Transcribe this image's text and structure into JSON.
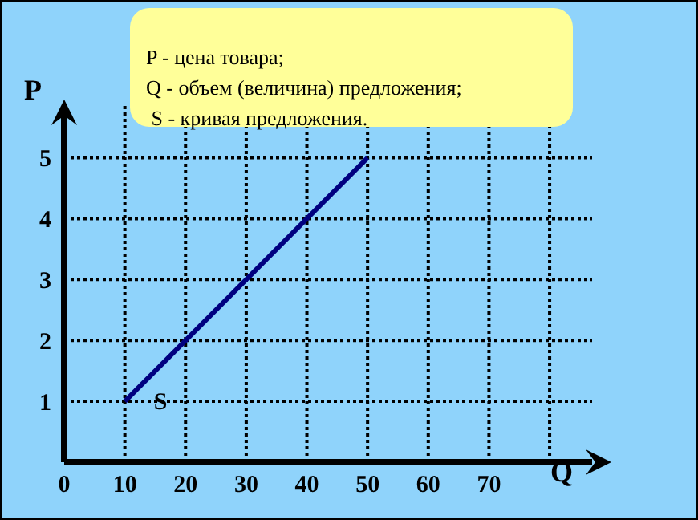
{
  "chart_data": {
    "type": "line",
    "xlabel": "Q",
    "ylabel": "P",
    "x": [
      10,
      50
    ],
    "series": [
      {
        "name": "S",
        "color": "#000080",
        "values": [
          1,
          5
        ]
      }
    ],
    "xlim": [
      0,
      87
    ],
    "ylim": [
      0,
      5.85
    ],
    "xticks": [
      {
        "value": 0,
        "label": "0"
      },
      10,
      20,
      30,
      40,
      50,
      60,
      70,
      {
        "value": 80,
        "label": null
      }
    ],
    "yticks": [
      1,
      2,
      3,
      4,
      5
    ],
    "grid": true,
    "marker": "none",
    "line_style": "solid",
    "annotations": [
      "P - цена товара;",
      "Q - объем (величина) предложения;",
      " S - кривая предложения."
    ]
  }
}
